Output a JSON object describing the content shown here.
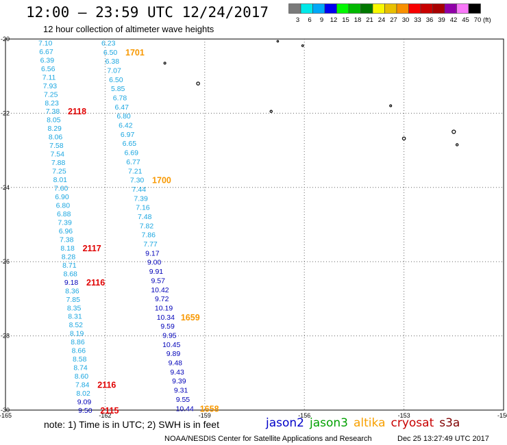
{
  "title": "12:00 – 23:59 UTC 12/24/2017",
  "subtitle": "12 hour collection of altimeter wave heights",
  "colorbar": {
    "labels": [
      "3",
      "6",
      "9",
      "12",
      "15",
      "18",
      "21",
      "24",
      "27",
      "30",
      "33",
      "36",
      "39",
      "42",
      "45",
      "70"
    ],
    "unit": "(ft)",
    "colors": [
      "#7a7a7a",
      "#00e8e8",
      "#00a8f8",
      "#0000f0",
      "#00f800",
      "#00b800",
      "#007800",
      "#f8f800",
      "#e8c000",
      "#f89000",
      "#f80000",
      "#c80000",
      "#a80000",
      "#9000a8",
      "#f878f8",
      "#000000"
    ]
  },
  "axes": {
    "x_ticks": [
      "-165",
      "-162",
      "-159",
      "-156",
      "-153",
      "-150"
    ],
    "y_ticks": [
      "-20",
      "-22",
      "-24",
      "-26",
      "-28",
      "-30"
    ]
  },
  "tracks": [
    {
      "name": "track-west",
      "lon_start": -163.8,
      "lat_start": -20.1,
      "lon_end": -162.6,
      "lat_end": -30.0,
      "values": [
        "7.10",
        "6.67",
        "6.39",
        "6.56",
        "7.11",
        "7.93",
        "7.25",
        "8.23",
        "7.38",
        "8.05",
        "8.29",
        "8.06",
        "7.58",
        "7.54",
        "7.88",
        "7.25",
        "8.01",
        "7.60",
        "6.90",
        "6.80",
        "6.88",
        "7.39",
        "6.96",
        "7.38",
        "8.18",
        "8.28",
        "8.71",
        "8.68",
        "9.18",
        "8.36",
        "7.85",
        "8.35",
        "8.31",
        "8.52",
        "8.19",
        "8.86",
        "8.66",
        "8.58",
        "8.74",
        "8.60",
        "7.84",
        "8.02",
        "9.09",
        "9.50"
      ],
      "times": [
        {
          "index": 8,
          "time": "2118",
          "satellite": "cryosat"
        },
        {
          "index": 24,
          "time": "2117",
          "satellite": "cryosat"
        },
        {
          "index": 28,
          "time": "2116",
          "satellite": "cryosat"
        },
        {
          "index": 40,
          "time": "2116",
          "satellite": "cryosat"
        },
        {
          "index": 43,
          "time": "2115",
          "satellite": "cryosat"
        }
      ]
    },
    {
      "name": "track-east",
      "lon_start": -161.9,
      "lat_start": -20.1,
      "lon_end": -159.6,
      "lat_end": -29.95,
      "values": [
        "6.23",
        "6.50",
        "6.38",
        "7.07",
        "6.50",
        "5.85",
        "6.78",
        "6.47",
        "6.80",
        "6.42",
        "6.97",
        "6.65",
        "6.69",
        "6.77",
        "7.21",
        "7.30",
        "7.44",
        "7.39",
        "7.16",
        "7.48",
        "7.82",
        "7.86",
        "7.77",
        "9.17",
        "9.00",
        "9.91",
        "9.57",
        "10.42",
        "9.72",
        "10.19",
        "10.34",
        "9.59",
        "9.95",
        "10.45",
        "9.89",
        "9.48",
        "9.43",
        "9.39",
        "9.31",
        "9.55",
        "10.44"
      ],
      "times": [
        {
          "index": 1,
          "time": "1701",
          "satellite": "altika"
        },
        {
          "index": 15,
          "time": "1700",
          "satellite": "altika"
        },
        {
          "index": 30,
          "time": "1659",
          "satellite": "altika"
        },
        {
          "index": 40,
          "time": "1658",
          "satellite": "altika"
        }
      ]
    }
  ],
  "note": "note:  1) Time is in UTC;  2) SWH is in feet",
  "legend": [
    {
      "label": "jason2",
      "color": "#0000c8"
    },
    {
      "label": "jason3",
      "color": "#00a000"
    },
    {
      "label": "altika",
      "color": "#f8a000"
    },
    {
      "label": "cryosat",
      "color": "#c80000"
    },
    {
      "label": "s3a",
      "color": "#800000"
    }
  ],
  "footer_center": "NOAA/NESDIS Center for Satellite Applications and Research",
  "footer_date": "Dec 25 13:27:49 UTC 2017"
}
